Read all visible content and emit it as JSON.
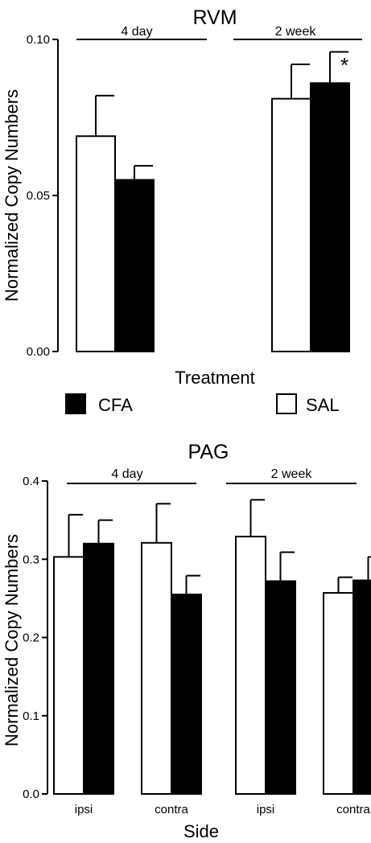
{
  "colors": {
    "CFA": "#000000",
    "SAL": "#ffffff",
    "stroke": "#000000"
  },
  "legend": [
    {
      "label": "CFA",
      "color": "#000000"
    },
    {
      "label": "SAL",
      "color": "#ffffff"
    }
  ],
  "chart_data": [
    {
      "type": "bar",
      "title": "RVM",
      "xlabel": "Treatment",
      "ylabel": "Normalized Copy Numbers",
      "ylim": [
        0,
        0.1
      ],
      "yticks": [
        "0.00",
        "0.05",
        "0.10"
      ],
      "ytick_values": [
        0,
        0.05,
        0.1
      ],
      "categories": [
        "4 day",
        "2 week"
      ],
      "bracket_labels": [
        "4 day",
        "2 week"
      ],
      "series": [
        {
          "name": "SAL",
          "values": [
            0.069,
            0.081
          ],
          "errors": [
            0.013,
            0.011
          ]
        },
        {
          "name": "CFA",
          "values": [
            0.055,
            0.086
          ],
          "errors": [
            0.0045,
            0.01
          ]
        }
      ],
      "annotations": [
        "*"
      ],
      "legend_position": "bottom"
    },
    {
      "type": "bar",
      "title": "PAG",
      "xlabel": "Side",
      "ylabel": "Normalized Copy Numbers",
      "ylim": [
        0,
        0.4
      ],
      "yticks": [
        "0.0",
        "0.1",
        "0.2",
        "0.3",
        "0.4"
      ],
      "ytick_values": [
        0,
        0.1,
        0.2,
        0.3,
        0.4
      ],
      "categories": [
        "ipsi",
        "contra",
        "ipsi",
        "contra"
      ],
      "bracket_labels": [
        "4 day",
        "2 week"
      ],
      "series": [
        {
          "name": "SAL",
          "values": [
            0.303,
            0.321,
            0.329,
            0.257
          ],
          "errors": [
            0.054,
            0.05,
            0.047,
            0.02
          ]
        },
        {
          "name": "CFA",
          "values": [
            0.32,
            0.255,
            0.272,
            0.273
          ],
          "errors": [
            0.03,
            0.024,
            0.037,
            0.03
          ]
        }
      ]
    }
  ]
}
